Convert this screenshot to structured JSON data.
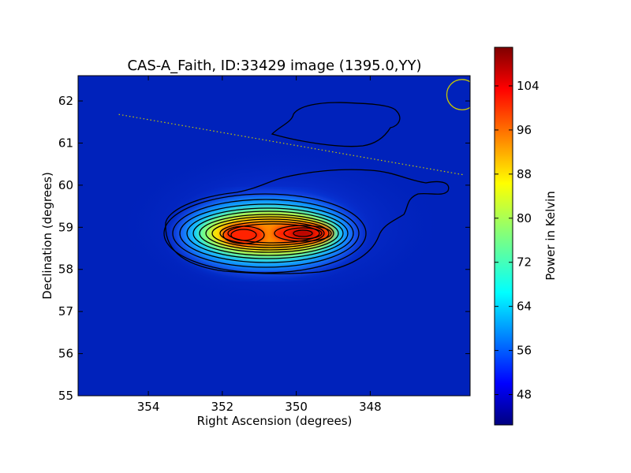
{
  "chart_data": {
    "type": "heatmap",
    "title": "CAS-A_Faith, ID:33429 image (1395.0,YY)",
    "xlabel": "Right Ascension (degrees)",
    "ylabel": "Declination (degrees)",
    "x_ticks": [
      "354",
      "352",
      "350",
      "348"
    ],
    "y_ticks": [
      "55",
      "56",
      "57",
      "58",
      "59",
      "60",
      "61",
      "62"
    ],
    "xlim": [
      355.9,
      345.3
    ],
    "ylim": [
      55.0,
      62.6
    ],
    "colorbar": {
      "label": "Power in Kelvin",
      "ticks": [
        "48",
        "56",
        "64",
        "72",
        "80",
        "88",
        "96",
        "104"
      ],
      "range": [
        42.5,
        111
      ],
      "colormap": "jet"
    },
    "background_level": 45,
    "sources": [
      {
        "name": "peak",
        "ra": 350.0,
        "dec": 58.83,
        "peak_k": 110
      },
      {
        "name": "secondary",
        "ra": 351.6,
        "dec": 58.77,
        "peak_k": 101
      }
    ],
    "galactic_plane": {
      "style": "dotted",
      "color": "#c8c800",
      "points": [
        [
          354.8,
          61.68
        ],
        [
          345.5,
          60.25
        ]
      ]
    },
    "beam_circle": {
      "ra": 345.52,
      "dec": 62.15,
      "radius_deg": 0.36,
      "color": "#c8c800"
    }
  }
}
